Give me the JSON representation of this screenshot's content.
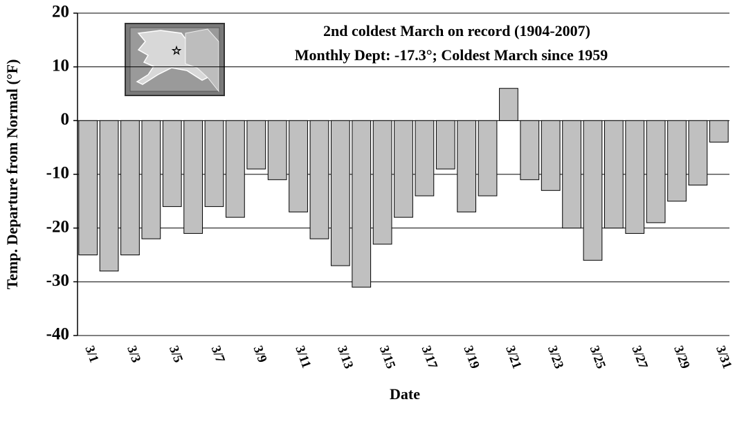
{
  "chart_data": {
    "type": "bar",
    "title": "2nd coldest March on record (1904-2007)",
    "subtitle": "Monthly Dept: -17.3°; Coldest March since 1959",
    "xlabel": "Date",
    "ylabel": "Temp. Departure from Normal (°F)",
    "categories": [
      "3/1",
      null,
      "3/3",
      null,
      "3/5",
      null,
      "3/7",
      null,
      "3/9",
      null,
      "3/11",
      null,
      "3/13",
      null,
      "3/15",
      null,
      "3/17",
      null,
      "3/19",
      null,
      "3/21",
      null,
      "3/23",
      null,
      "3/25",
      null,
      "3/27",
      null,
      "3/29",
      null,
      "3/31"
    ],
    "values": [
      -25,
      -28,
      -25,
      -22,
      -16,
      -21,
      -16,
      -18,
      -9,
      -11,
      -17,
      -22,
      -27,
      -31,
      -23,
      -18,
      -14,
      -9,
      -17,
      -14,
      6,
      -11,
      -13,
      -20,
      -26,
      -20,
      -21,
      -19,
      -15,
      -12,
      -4
    ],
    "color": "#c0c0c0",
    "ylim": [
      -40,
      20
    ],
    "yticks": [
      -40,
      -30,
      -20,
      -10,
      0,
      10,
      20
    ],
    "grid": true
  }
}
